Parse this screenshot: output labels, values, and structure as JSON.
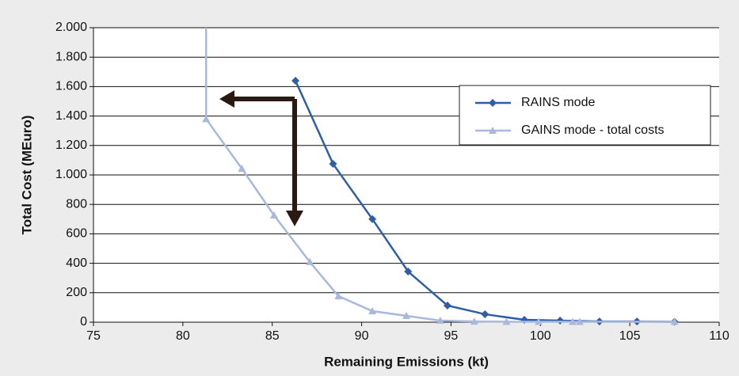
{
  "chart_data": {
    "type": "line",
    "xlabel": "Remaining Emissions (kt)",
    "ylabel": "Total Cost (MEuro)",
    "xlim": [
      75,
      110
    ],
    "xticks": [
      75,
      80,
      85,
      90,
      95,
      100,
      105,
      110
    ],
    "ylim": [
      0,
      2000
    ],
    "yticks": [
      0,
      200,
      400,
      600,
      800,
      {
        "value": 1000,
        "label": "1.000"
      },
      {
        "value": 1200,
        "label": "1.200"
      },
      {
        "value": 1400,
        "label": "1.400"
      },
      {
        "value": 1600,
        "label": "1.600"
      },
      {
        "value": 1800,
        "label": "1.800"
      },
      {
        "value": 2000,
        "label": "2.000"
      }
    ],
    "grid": true,
    "series": [
      {
        "name": "RAINS mode",
        "color": "#2f5ea6",
        "marker": "diamond",
        "x": [
          86.3,
          88.4,
          90.6,
          92.6,
          94.8,
          96.9,
          99.1,
          101.1,
          103.3,
          105.4,
          107.5
        ],
        "values": [
          1640,
          1075,
          700,
          344,
          113,
          54,
          16,
          11,
          5,
          5,
          3
        ]
      },
      {
        "name": "GAINS mode - total costs",
        "color": "#a8b9dd",
        "marker": "triangle",
        "x": [
          81.3,
          83.3,
          85.1,
          87.1,
          88.7,
          90.6,
          92.5,
          94.4,
          96.3,
          98.1,
          99.9,
          101.8,
          102.2,
          107.5
        ],
        "values": [
          1380,
          1043,
          726,
          409,
          177,
          75,
          43,
          11,
          5,
          3,
          3,
          3,
          3,
          3
        ]
      }
    ]
  }
}
